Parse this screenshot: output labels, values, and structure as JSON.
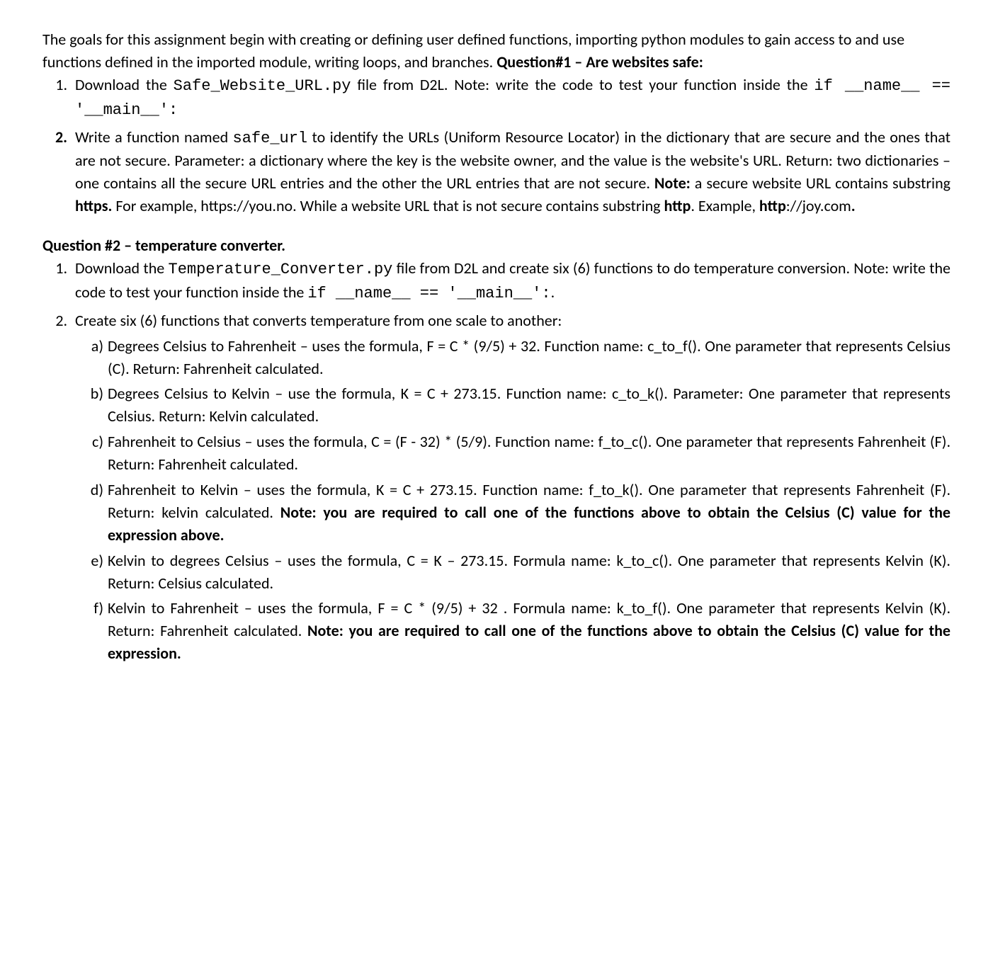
{
  "intro": "The goals for this assignment begin with creating or defining user defined functions, importing python modules to gain access to and use functions defined in the imported module, writing loops, and branches.",
  "q1": {
    "heading": "Question#1 – Are websites safe:",
    "item1": {
      "pre": "Download the ",
      "code1": "Safe_Website_URL.py",
      "mid1": " file from D2L. Note: write the code to test your function inside the ",
      "code2": "if __name__ == '__main__':"
    },
    "item2": {
      "pre": "Write a function named ",
      "code1": "safe_url",
      "mid1": " to identify the URLs (Uniform Resource Locator) in the dictionary that are secure and the ones that are not secure. Parameter: a dictionary where the key is the website owner, and the value is the website's URL. Return: two dictionaries – one contains all the secure URL entries and the other the URL entries that are not secure. ",
      "note_lbl": "Note:",
      "mid2": " a secure website URL contains substring ",
      "https_lbl": "https.",
      "mid3": " For example, https://you.no. While a website URL that is not secure contains substring ",
      "http_lbl": "http",
      "mid4": ". Example, ",
      "http_ex": "http",
      "mid5": "://joy.com",
      "period": "."
    }
  },
  "q2": {
    "heading": "Question #2 – temperature converter.",
    "item1": {
      "pre": "Download the ",
      "code1": "Temperature_Converter.py",
      "mid1": " file from D2L and create six (6) functions to do temperature conversion. Note: write the code to test your function inside the ",
      "code2": "if __name__ == '__main__':",
      "post": "."
    },
    "item2_intro": "Create six (6) functions that converts temperature from one scale to another:",
    "subs": {
      "a": "Degrees Celsius to Fahrenheit – uses the formula, F = C * (9/5) + 32. Function name: c_to_f(). One parameter that represents Celsius (C). Return: Fahrenheit calculated.",
      "b": "Degrees Celsius to Kelvin – use the formula, K = C + 273.15. Function name: c_to_k(). Parameter: One parameter that represents Celsius. Return: Kelvin calculated.",
      "c": "Fahrenheit to Celsius – uses the formula, C = (F - 32) * (5/9). Function name: f_to_c(). One parameter that represents Fahrenheit (F). Return: Fahrenheit calculated.",
      "d": {
        "text": "Fahrenheit to Kelvin – uses the formula, K = C + 273.15. Function name: f_to_k(). One parameter that represents Fahrenheit (F). Return: kelvin calculated. ",
        "note": "Note: you are required to call one of the functions above to obtain the Celsius (C) value for the expression above."
      },
      "e": "Kelvin to degrees Celsius – uses the formula, C = K – 273.15. Formula name: k_to_c(). One parameter that represents Kelvin (K). Return: Celsius calculated.",
      "f": {
        "text": "Kelvin to Fahrenheit – uses the formula, F = C * (9/5) + 32 . Formula name: k_to_f(). One parameter that represents Kelvin (K). Return: Fahrenheit calculated. ",
        "note": "Note: you are required to call one of the functions above to obtain the Celsius (C) value for the expression."
      }
    }
  }
}
